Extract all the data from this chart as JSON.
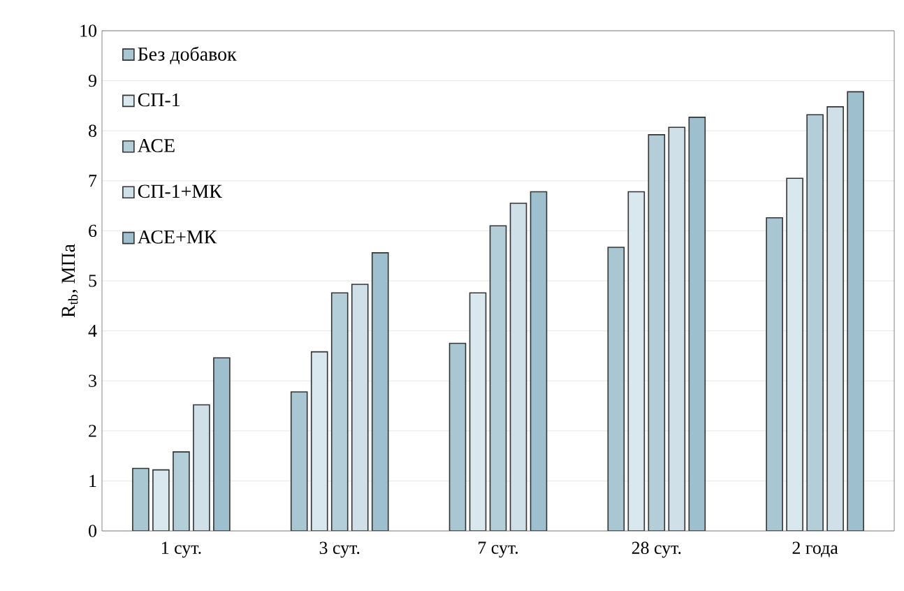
{
  "chart_data": {
    "type": "bar",
    "ylabel": "R$_{tb}$, МПа",
    "categories": [
      "1 сут.",
      "3 сут.",
      "7 сут.",
      "28 сут.",
      "2 года"
    ],
    "series": [
      {
        "name": "Без добавок",
        "color": "#a9c6d3",
        "values": [
          1.25,
          2.78,
          3.75,
          5.67,
          6.26
        ]
      },
      {
        "name": "СП-1",
        "color": "#d9e7ee",
        "values": [
          1.22,
          3.58,
          4.76,
          6.78,
          7.05
        ]
      },
      {
        "name": "АСЕ",
        "color": "#b3cdd9",
        "values": [
          1.58,
          4.76,
          6.1,
          7.92,
          8.32
        ]
      },
      {
        "name": "СП-1+МК",
        "color": "#cfe0e8",
        "values": [
          2.52,
          4.93,
          6.55,
          8.07,
          8.48
        ]
      },
      {
        "name": "АСЕ+МК",
        "color": "#9ebfce",
        "values": [
          3.46,
          5.56,
          6.78,
          8.27,
          8.78
        ]
      }
    ],
    "ylim": [
      0,
      10
    ],
    "yticks": [
      0,
      1,
      2,
      3,
      4,
      5,
      6,
      7,
      8,
      9,
      10
    ],
    "grid": "y",
    "legend": "top left"
  }
}
